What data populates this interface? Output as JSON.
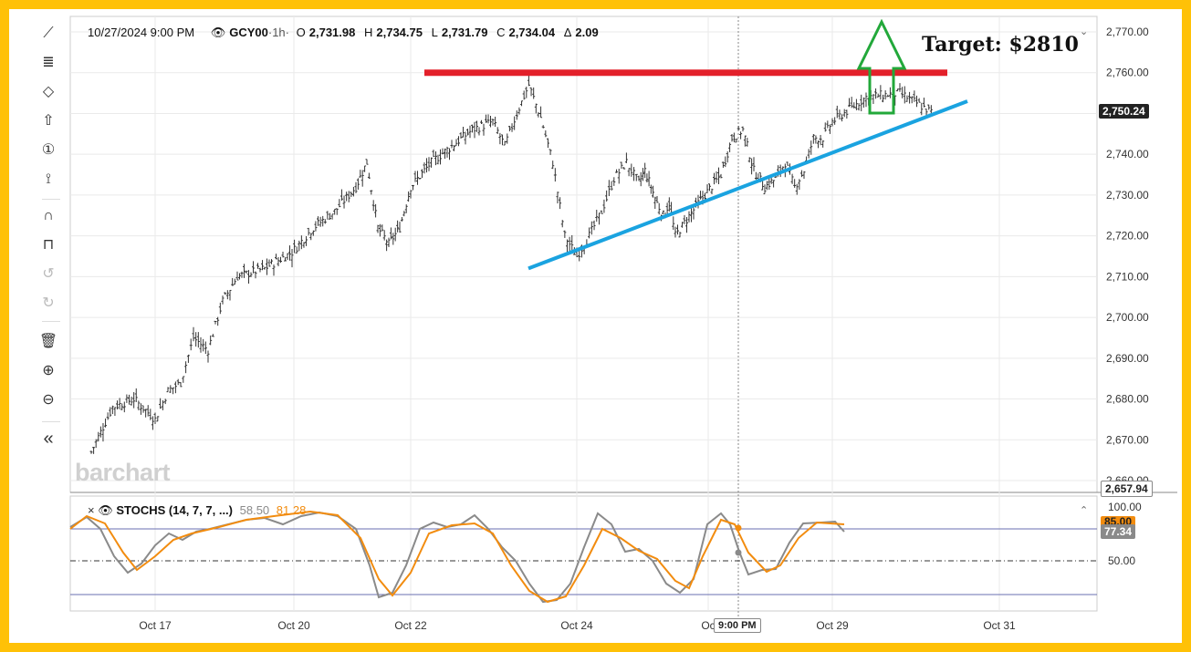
{
  "header": {
    "datetime": "10/27/2024 9:00 PM",
    "symbol": "GCY00",
    "interval": "·1h·",
    "open_label": "O",
    "open": "2,731.98",
    "high_label": "H",
    "high": "2,734.75",
    "low_label": "L",
    "low": "2,731.79",
    "close_label": "C",
    "close": "2,734.04",
    "change_label": "Δ",
    "change": "2.09"
  },
  "watermark": "barchart",
  "annotation": {
    "target_text": "Target: $2810"
  },
  "price_axis": {
    "ticks": [
      "2,770.00",
      "2,760.00",
      "2,750.00",
      "2,740.00",
      "2,730.00",
      "2,720.00",
      "2,710.00",
      "2,700.00",
      "2,690.00",
      "2,680.00",
      "2,670.00",
      "2,660.00"
    ],
    "tick_values": [
      2770,
      2760,
      2750,
      2740,
      2730,
      2720,
      2710,
      2700,
      2690,
      2680,
      2670,
      2660
    ],
    "current_price_tag": "2,750.24",
    "last_tag": "2,657.94"
  },
  "stoch_axis": {
    "ticks": [
      "100.00",
      "50.00"
    ],
    "tag_d": "85.00",
    "tag_k": "77.34"
  },
  "stoch_legend": {
    "close_glyph": "×",
    "name": "STOCHS (14, 7, 7, ...)",
    "k_value": "58.50",
    "d_value": "81.28"
  },
  "x_axis": {
    "labels": [
      "Oct 17",
      "Oct 20",
      "Oct 22",
      "Oct 24",
      "Oc",
      "Oct 29",
      "Oct 31"
    ],
    "crosshair_label": "9:00 PM"
  },
  "colors": {
    "border": "#ffc107",
    "resistance_line": "#e3202a",
    "support_line": "#1aa3e0",
    "arrow": "#22a83a",
    "stoch_k": "#8a8a8a",
    "stoch_d": "#f28c0f"
  },
  "toolbar": {
    "icons": [
      "line-tool-icon",
      "fib-tool-icon",
      "shape-tool-icon",
      "arrow-tool-icon",
      "counter-tool-icon",
      "pattern-tool-icon",
      "magnet-icon",
      "unlock-icon",
      "undo-icon",
      "redo-icon",
      "trash-icon",
      "zoom-in-icon",
      "zoom-out-icon",
      "collapse-icon"
    ]
  },
  "chart_data": {
    "type": "ohlc",
    "title": "",
    "symbol": "GCY00",
    "interval": "1h",
    "ylim": [
      2657.94,
      2772
    ],
    "x_labels": [
      "Oct 17",
      "Oct 20",
      "Oct 22",
      "Oct 24",
      "Oct 29",
      "Oct 31"
    ],
    "close_path": [
      [
        "Oct 16",
        2667
      ],
      [
        "Oct 16",
        2678
      ],
      [
        "Oct 16",
        2680
      ],
      [
        "Oct 17",
        2675
      ],
      [
        "Oct 17",
        2682
      ],
      [
        "Oct 17",
        2684
      ],
      [
        "Oct 18",
        2695
      ],
      [
        "Oct 18",
        2692
      ],
      [
        "Oct 18",
        2704
      ],
      [
        "Oct 19",
        2710
      ],
      [
        "Oct 19",
        2712
      ],
      [
        "Oct 20",
        2716
      ],
      [
        "Oct 20",
        2722
      ],
      [
        "Oct 20",
        2726
      ],
      [
        "Oct 21",
        2732
      ],
      [
        "Oct 21",
        2738
      ],
      [
        "Oct 21",
        2722
      ],
      [
        "Oct 21",
        2718
      ],
      [
        "Oct 21",
        2722
      ],
      [
        "Oct 22",
        2732
      ],
      [
        "Oct 22",
        2738
      ],
      [
        "Oct 22",
        2742
      ],
      [
        "Oct 22",
        2746
      ],
      [
        "Oct 23",
        2748
      ],
      [
        "Oct 23",
        2742
      ],
      [
        "Oct 23",
        2750
      ],
      [
        "Oct 23",
        2757
      ],
      [
        "Oct 23",
        2749
      ],
      [
        "Oct 23",
        2738
      ],
      [
        "Oct 23",
        2720
      ],
      [
        "Oct 24",
        2715
      ],
      [
        "Oct 24",
        2720
      ],
      [
        "Oct 24",
        2726
      ],
      [
        "Oct 24",
        2734
      ],
      [
        "Oct 24",
        2738
      ],
      [
        "Oct 25",
        2733
      ],
      [
        "Oct 25",
        2736
      ],
      [
        "Oct 25",
        2732
      ],
      [
        "Oct 25",
        2728
      ],
      [
        "Oct 25",
        2725
      ],
      [
        "Oct 25",
        2728
      ],
      [
        "Oct 26",
        2720
      ],
      [
        "Oct 26",
        2728
      ],
      [
        "Oct 27",
        2735
      ],
      [
        "Oct 27",
        2744
      ],
      [
        "Oct 27",
        2746
      ],
      [
        "Oct 27",
        2736
      ],
      [
        "Oct 27",
        2732
      ],
      [
        "Oct 28",
        2734
      ],
      [
        "Oct 28",
        2738
      ],
      [
        "Oct 28",
        2732
      ],
      [
        "Oct 28",
        2736
      ],
      [
        "Oct 28",
        2744
      ],
      [
        "Oct 28",
        2744
      ],
      [
        "Oct 29",
        2748
      ],
      [
        "Oct 29",
        2754
      ],
      [
        "Oct 29",
        2755
      ],
      [
        "Oct 29",
        2750
      ]
    ],
    "indicator": {
      "name": "STOCHS (14, 7, 7, ...)",
      "ylim": [
        0,
        110
      ],
      "levels": [
        80,
        50,
        20
      ],
      "k_last": 58.5,
      "d_last": 81.28
    },
    "annotations": {
      "resistance": 2760,
      "support_line": [
        [
          "Oct 23",
          2712
        ],
        [
          "Oct 30",
          2753
        ]
      ],
      "target": "Target: $2810"
    }
  }
}
